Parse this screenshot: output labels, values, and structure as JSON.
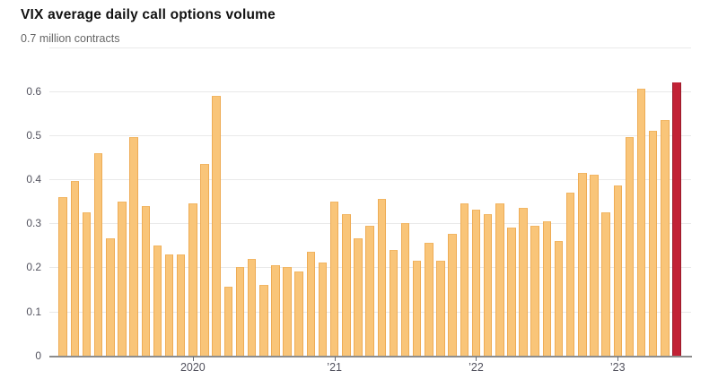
{
  "header": {
    "title": "VIX average daily call options volume",
    "unit_label": "0.7 million contracts"
  },
  "chart_data": {
    "type": "bar",
    "title": "VIX average daily call options volume",
    "ylabel": "million contracts",
    "ylim": [
      0,
      0.7
    ],
    "grid": true,
    "y_tick_labels": [
      "0.6",
      "0.5",
      "0.4",
      "0.3",
      "0.2",
      "0.1",
      "0"
    ],
    "y_tick_values": [
      0.6,
      0.5,
      0.4,
      0.3,
      0.2,
      0.1,
      0
    ],
    "top_gridline_value": 0.7,
    "x_tick_labels": [
      "2020",
      "’21",
      "’22",
      "’23"
    ],
    "x_tick_bar_index": [
      11,
      23,
      35,
      47
    ],
    "values": [
      0.36,
      0.395,
      0.325,
      0.46,
      0.265,
      0.35,
      0.495,
      0.34,
      0.25,
      0.23,
      0.23,
      0.345,
      0.435,
      0.59,
      0.155,
      0.2,
      0.22,
      0.16,
      0.205,
      0.2,
      0.19,
      0.235,
      0.21,
      0.35,
      0.32,
      0.265,
      0.295,
      0.355,
      0.24,
      0.3,
      0.215,
      0.255,
      0.215,
      0.275,
      0.345,
      0.33,
      0.32,
      0.345,
      0.29,
      0.335,
      0.295,
      0.305,
      0.26,
      0.37,
      0.415,
      0.41,
      0.325,
      0.385,
      0.495,
      0.605,
      0.51,
      0.535,
      0.62
    ],
    "highlight_last_bar": true,
    "colors": {
      "bar_fill": "#f9c579",
      "bar_edge": "#eeac55",
      "highlight_fill": "#c22236",
      "highlight_edge": "#991b2b",
      "gridline": "#e9e9e9",
      "axis_line": "#8c8c8c",
      "tick_text": "#52525e",
      "title_text": "#111111",
      "unit_text": "#666666"
    }
  }
}
